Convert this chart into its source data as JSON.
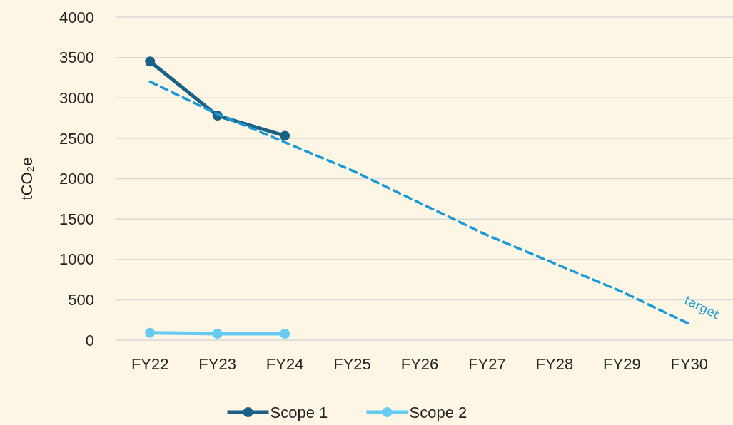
{
  "chart_data": {
    "type": "line",
    "ylabel": "tCO₂e",
    "categories": [
      "FY22",
      "FY23",
      "FY24",
      "FY25",
      "FY26",
      "FY27",
      "FY28",
      "FY29",
      "FY30"
    ],
    "series": [
      {
        "name": "Scope 1",
        "color": "#1b6185",
        "values": [
          3450,
          2780,
          2530,
          null,
          null,
          null,
          null,
          null,
          null
        ],
        "marker": "circle"
      },
      {
        "name": "Scope 2",
        "color": "#66cbf2",
        "values": [
          90,
          80,
          80,
          null,
          null,
          null,
          null,
          null,
          null
        ],
        "marker": "circle"
      },
      {
        "name": "target",
        "color": "#1a9bd7",
        "values": [
          3200,
          2800,
          2450,
          2100,
          1700,
          1300,
          950,
          600,
          200
        ],
        "line_style": "dashed",
        "marker": "none"
      }
    ],
    "ylim": [
      0,
      4000
    ],
    "yticks": [
      0,
      500,
      1000,
      1500,
      2000,
      2500,
      3000,
      3500,
      4000
    ],
    "grid": "y",
    "legend": "bottom"
  }
}
